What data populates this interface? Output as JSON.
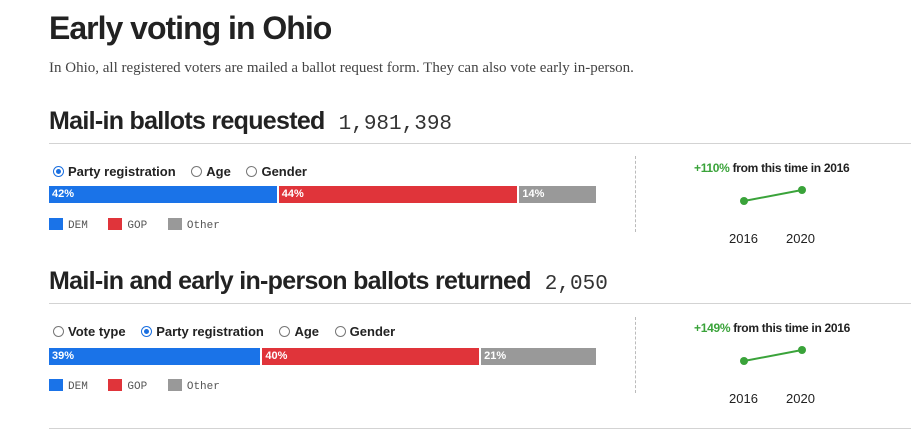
{
  "header": {
    "title": "Early voting in Ohio",
    "subtitle": "In Ohio, all registered voters are mailed a ballot request form. They can also vote early in-person."
  },
  "colors": {
    "dem": "#1a73e8",
    "gop": "#e0343a",
    "other": "#999999",
    "growth": "#3aa33a",
    "radio": "#1a6fe0"
  },
  "sections": [
    {
      "title": "Mail-in ballots requested",
      "total": "1,981,398",
      "radios": [
        {
          "label": "Party registration",
          "selected": true
        },
        {
          "label": "Age",
          "selected": false
        },
        {
          "label": "Gender",
          "selected": false
        }
      ],
      "bar": [
        {
          "key": "DEM",
          "label": "42%",
          "value": 42
        },
        {
          "key": "GOP",
          "label": "44%",
          "value": 44
        },
        {
          "key": "Other",
          "label": "14%",
          "value": 14
        }
      ],
      "legend": [
        "DEM",
        "GOP",
        "Other"
      ],
      "growth": {
        "pct": "+110%",
        "text": " from this time in 2016"
      },
      "years": [
        "2016",
        "2020"
      ]
    },
    {
      "title": "Mail-in and early in-person ballots returned",
      "total": "2,050",
      "radios": [
        {
          "label": "Vote type",
          "selected": false
        },
        {
          "label": "Party registration",
          "selected": true
        },
        {
          "label": "Age",
          "selected": false
        },
        {
          "label": "Gender",
          "selected": false
        }
      ],
      "bar": [
        {
          "key": "DEM",
          "label": "39%",
          "value": 39
        },
        {
          "key": "GOP",
          "label": "40%",
          "value": 40
        },
        {
          "key": "Other",
          "label": "21%",
          "value": 21
        }
      ],
      "legend": [
        "DEM",
        "GOP",
        "Other"
      ],
      "growth": {
        "pct": "+149%",
        "text": " from this time in 2016"
      },
      "years": [
        "2016",
        "2020"
      ]
    }
  ]
}
